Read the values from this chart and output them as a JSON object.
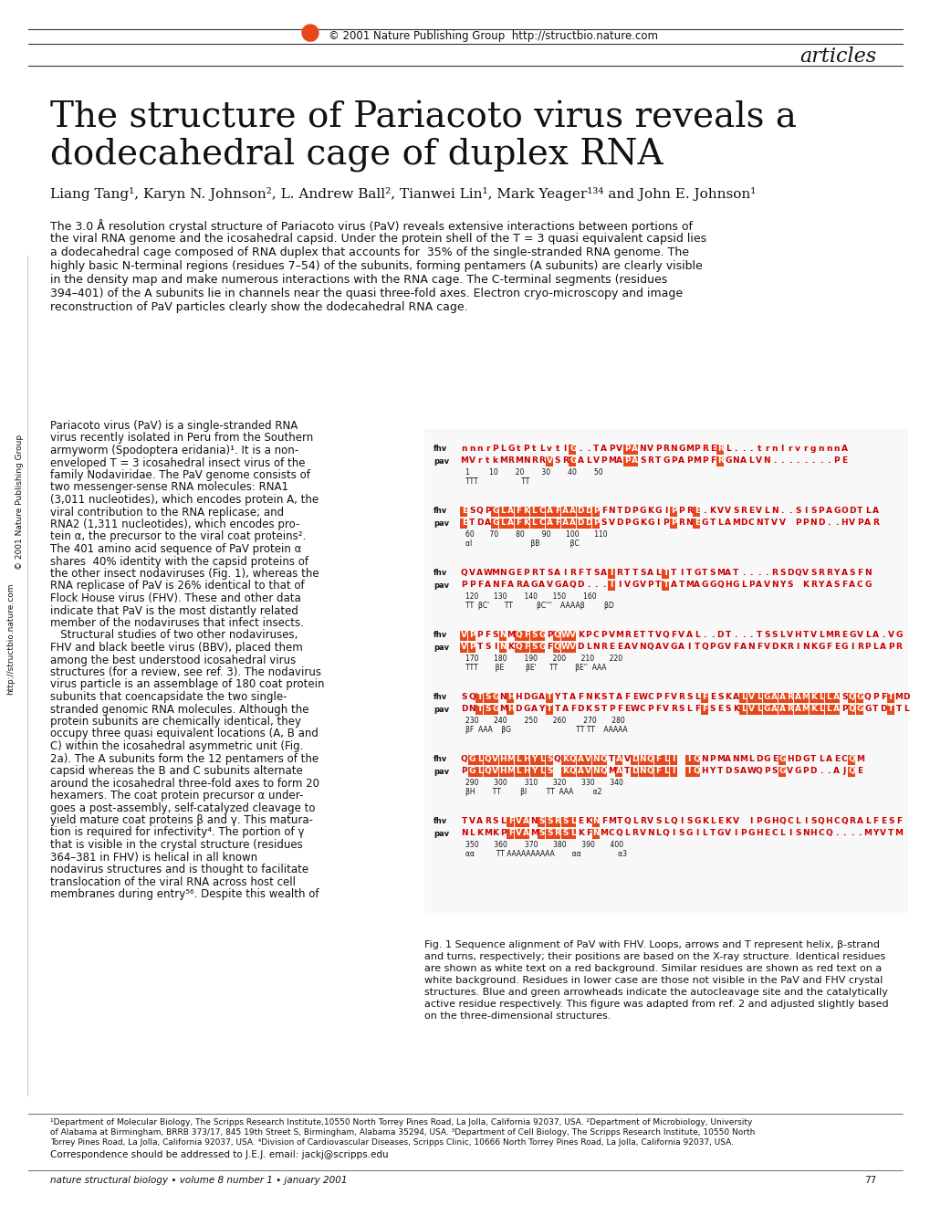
{
  "bg_color": "#ffffff",
  "header_line_color": "#333333",
  "header_text": "© 2001 Nature Publishing Group  http://structbio.nature.com",
  "section_label": "articles",
  "title_line1": "The structure of Pariacoto virus reveals a",
  "title_line2": "dodecahedral cage of duplex RNA",
  "authors": "Liang Tang¹, Karyn N. Johnson², L. Andrew Ball², Tianwei Lin¹, Mark Yeager¹³⁴ and John E. Johnson¹",
  "abstract_title": "",
  "abstract_text": "The 3.0 Å resolution crystal structure of Pariacoto virus (PaV) reveals extensive interactions between portions of\nthe viral RNA genome and the icosahedral capsid. Under the protein shell of the T = 3 quasi equivalent capsid lies\na dodecahedral cage composed of RNA duplex that accounts for  35% of the single-stranded RNA genome. The\nhighly basic N-terminal regions (residues 7–54) of the subunits, forming pentamers (A subunits) are clearly visible\nin the density map and make numerous interactions with the RNA cage. The C-terminal segments (residues\n394–401) of the A subunits lie in channels near the quasi three-fold axes. Electron cryo-microscopy and image\nreconstruction of PaV particles clearly show the dodecahedral RNA cage.",
  "left_col_text": "Pariacoto virus (PaV) is a single-stranded RNA\nvirus recently isolated in Peru from the Southern\narmyworm (Spodoptera eridania)¹. It is a non-\nenveloped T = 3 icosahedral insect virus of the\nfamily Nodaviridae. The PaV genome consists of\ntwo messenger-sense RNA molecules: RNA1\n(3,011 nucleotides), which encodes protein A, the\nviral contribution to the RNA replicase; and\nRNA2 (1,311 nucleotides), which encodes pro-\ntein α, the precursor to the viral coat proteins².\nThe 401 amino acid sequence of PaV protein α\nshares  40% identity with the capsid proteins of\nthe other insect nodaviruses (Fig. 1), whereas the\nRNA replicase of PaV is 26% identical to that of\nFlock House virus (FHV). These and other data\nindicate that PaV is the most distantly related\nmember of the nodaviruses that infect insects.\n   Structural studies of two other nodaviruses,\nFHV and black beetle virus (BBV), placed them\namong the best understood icosahedral virus\nstructures (for a review, see ref. 3). The nodavirus\nvirus particle is an assemblage of 180 coat protein\nsubunits that coencapsidate the two single-\nstranded genomic RNA molecules. Although the\nprotein subunits are chemically identical, they\noccupy three quasi equivalent locations (A, B and\nC) within the icosahedral asymmetric unit (Fig.\n2a). The A subunits form the 12 pentamers of the\ncapsid whereas the B and C subunits alternate\naround the icosahedral three-fold axes to form 20\nhexamers. The coat protein precursor α under-\ngoes a post-assembly, self-catalyzed cleavage to\nyield mature coat proteins β and γ. This matura-\ntion is required for infectivity⁴. The portion of γ\nthat is visible in the crystal structure (residues\n364–381 in FHV) is helical in all known\nnodavirus structures and is thought to facilitate\ntranslocation of the viral RNA across host cell\nmembranes during entry⁵⁶. Despite this wealth of",
  "fig_caption": "Fig. 1 Sequence alignment of PaV with FHV. Loops, arrows and T represent helix, β-strand\nand turns, respectively; their positions are based on the X-ray structure. Identical residues\nare shown as white text on a red background. Similar residues are shown as red text on a\nwhite background. Residues in lower case are those not visible in the PaV and FHV crystal\nstructures. Blue and green arrowheads indicate the autocleavage site and the catalytically\nactive residue respectively. This figure was adapted from ref. 2 and adjusted slightly based\non the three-dimensional structures.",
  "footer_affiliations": "¹Department of Molecular Biology, The Scripps Research Institute,10550 North Torrey Pines Road, La Jolla, California 92037, USA. ²Department of Microbiology, University\nof Alabama at Birmingham, BRRB 373/17, 845 19th Street S, Birmingham, Alabama 35294, USA. ³Department of Cell Biology, The Scripps Research Institute, 10550 North\nTorrey Pines Road, La Jolla, California 92037, USA. ⁴Division of Cardiovascular Diseases, Scripps Clinic, 10666 North Torrey Pines Road, La Jolla, California 92037, USA.",
  "footer_correspondence": "Correspondence should be addressed to J.E.J. email: jackj@scripps.edu",
  "footer_journal": "nature structural biology • volume 8 number 1 • january 2001",
  "footer_page": "77",
  "sidebar_text": "http://structbio.nature.com",
  "sidebar_text2": "© 2001 Nature Publishing Group",
  "orange_color": "#e8471a",
  "red_color": "#cc0000"
}
